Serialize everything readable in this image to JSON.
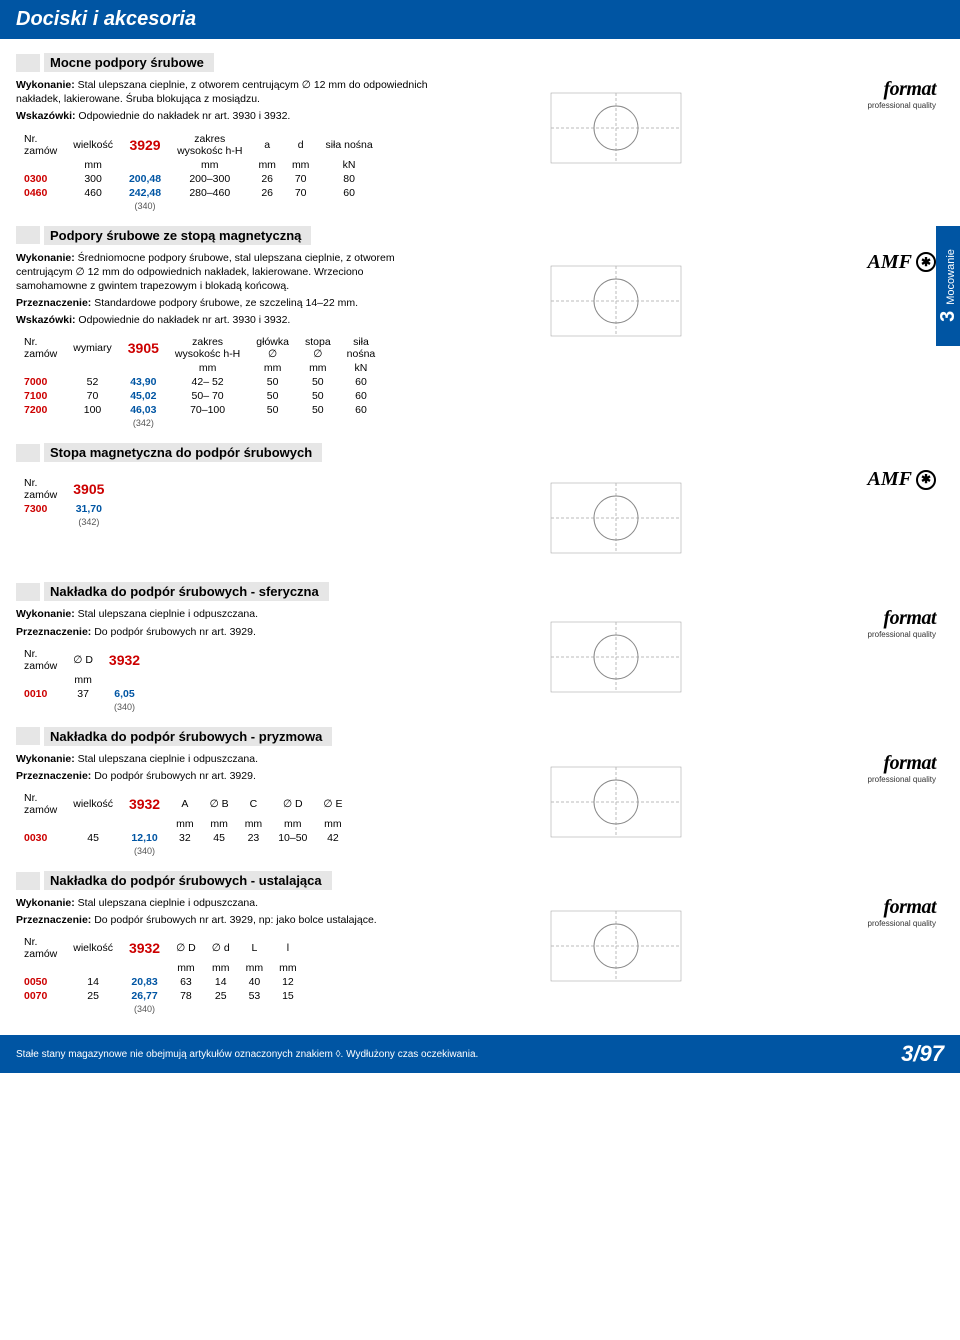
{
  "header": {
    "title": "Dociski i akcesoria"
  },
  "sideTab": {
    "number": "3",
    "label": "Mocowanie"
  },
  "footer": {
    "note": "Stałe stany magazynowe nie obejmują artykułów oznaczonych znakiem ◊. Wydłużony czas oczekiwania.",
    "page": "3/97"
  },
  "brands": {
    "format": "format",
    "format_sub": "professional quality",
    "amf": "AMF"
  },
  "sections": [
    {
      "title": "Mocne podpory śrubowe",
      "brand": "format",
      "desc": [
        {
          "b": "Wykonanie:",
          "t": " Stal ulepszana cieplnie, z otworem centrującym ∅ 12 mm do odpowiednich nakładek, lakierowane. Śruba blokująca z mosiądzu."
        },
        {
          "b": "Wskazówki:",
          "t": " Odpowiednie do nakładek nr art. 3930 i 3932."
        }
      ],
      "article": "3929",
      "headers1": [
        "Nr.\nzamów",
        "wielkość",
        "",
        "zakres\nwysokośc h-H",
        "a",
        "d",
        "siła nośna"
      ],
      "units": [
        "",
        "mm",
        "",
        "mm",
        "mm",
        "mm",
        "kN"
      ],
      "rows": [
        [
          "0300",
          "300",
          "200,48",
          "200–300",
          "26",
          "70",
          "80"
        ],
        [
          "0460",
          "460",
          "242,48",
          "280–460",
          "26",
          "70",
          "60"
        ]
      ],
      "qty": "(340)"
    },
    {
      "title": "Podpory śrubowe ze stopą magnetyczną",
      "brand": "amf",
      "sideTab": true,
      "desc": [
        {
          "b": "Wykonanie:",
          "t": " Średniomocne podpory śrubowe, stal ulepszana cieplnie, z otworem centrującym ∅ 12 mm do odpowiednich nakładek, lakierowane. Wrzeciono samohamowne z gwintem trapezowym i blokadą końcową."
        },
        {
          "b": "Przeznaczenie:",
          "t": " Standardowe podpory śrubowe, ze szczeliną 14–22 mm."
        },
        {
          "b": "Wskazówki:",
          "t": " Odpowiednie do nakładek nr art. 3930 i 3932."
        }
      ],
      "article": "3905",
      "headers1": [
        "Nr.\nzamów",
        "wymiary",
        "",
        "zakres\nwysokośc h-H",
        "główka\n∅",
        "stopa\n∅",
        "siła\nnośna"
      ],
      "units": [
        "",
        "",
        "",
        "mm",
        "mm",
        "mm",
        "kN"
      ],
      "rows": [
        [
          "7000",
          "52",
          "43,90",
          "42– 52",
          "50",
          "50",
          "60"
        ],
        [
          "7100",
          "70",
          "45,02",
          "50– 70",
          "50",
          "50",
          "60"
        ],
        [
          "7200",
          "100",
          "46,03",
          "70–100",
          "50",
          "50",
          "60"
        ]
      ],
      "qty": "(342)"
    },
    {
      "title": "Stopa magnetyczna do podpór śrubowych",
      "brand": "amf",
      "article": "3905",
      "headers1": [
        "Nr.\nzamów",
        ""
      ],
      "rows": [
        [
          "7300",
          "31,70"
        ]
      ],
      "qty": "(342)"
    },
    {
      "title": "Nakładka do podpór śrubowych - sferyczna",
      "brand": "format",
      "desc": [
        {
          "b": "Wykonanie:",
          "t": " Stal ulepszana cieplnie i odpuszczana."
        },
        {
          "b": "Przeznaczenie:",
          "t": " Do podpór śrubowych nr art. 3929."
        }
      ],
      "article": "3932",
      "headers1": [
        "Nr.\nzamów",
        "∅ D",
        ""
      ],
      "units": [
        "",
        "mm",
        ""
      ],
      "rows": [
        [
          "0010",
          "37",
          "6,05"
        ]
      ],
      "qty": "(340)"
    },
    {
      "title": "Nakładka do podpór śrubowych - pryzmowa",
      "brand": "format",
      "desc": [
        {
          "b": "Wykonanie:",
          "t": " Stal ulepszana cieplnie i odpuszczana."
        },
        {
          "b": "Przeznaczenie:",
          "t": " Do podpór śrubowych nr art. 3929."
        }
      ],
      "article": "3932",
      "headers1": [
        "Nr.\nzamów",
        "wielkość",
        "",
        "A",
        "∅ B",
        "C",
        "∅ D",
        "∅ E"
      ],
      "units": [
        "",
        "",
        "",
        "mm",
        "mm",
        "mm",
        "mm",
        "mm"
      ],
      "rows": [
        [
          "0030",
          "45",
          "12,10",
          "32",
          "45",
          "23",
          "10–50",
          "42"
        ]
      ],
      "qty": "(340)"
    },
    {
      "title": "Nakładka do podpór śrubowych - ustalająca",
      "brand": "format",
      "desc": [
        {
          "b": "Wykonanie:",
          "t": " Stal ulepszana cieplnie i odpuszczana."
        },
        {
          "b": "Przeznaczenie:",
          "t": " Do podpór śrubowych nr art. 3929, np: jako bolce ustalające."
        }
      ],
      "article": "3932",
      "headers1": [
        "Nr.\nzamów",
        "wielkość",
        "",
        "∅ D",
        "∅ d",
        "L",
        "l"
      ],
      "units": [
        "",
        "",
        "",
        "mm",
        "mm",
        "mm",
        "mm"
      ],
      "rows": [
        [
          "0050",
          "14",
          "20,83",
          "63",
          "14",
          "40",
          "12"
        ],
        [
          "0070",
          "25",
          "26,77",
          "78",
          "25",
          "53",
          "15"
        ]
      ],
      "qty": "(340)"
    }
  ]
}
